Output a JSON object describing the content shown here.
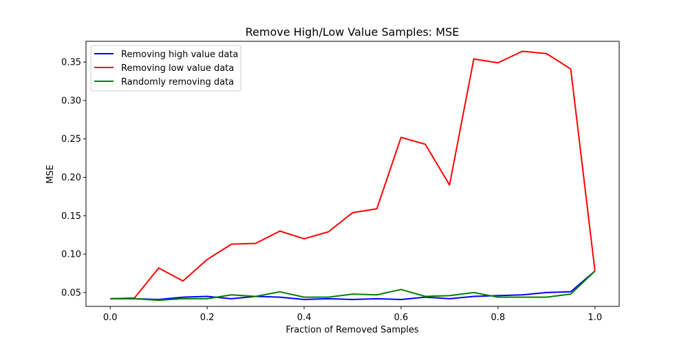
{
  "chart_data": {
    "type": "line",
    "title": "Remove High/Low Value Samples: MSE",
    "xlabel": "Fraction of Removed Samples",
    "ylabel": "MSE",
    "xlim": [
      -0.05,
      1.05
    ],
    "ylim": [
      0.032,
      0.377
    ],
    "xticks": [
      0.0,
      0.2,
      0.4,
      0.6,
      0.8,
      1.0
    ],
    "xtick_labels": [
      "0.0",
      "0.2",
      "0.4",
      "0.6",
      "0.8",
      "1.0"
    ],
    "yticks": [
      0.05,
      0.1,
      0.15,
      0.2,
      0.25,
      0.3,
      0.35
    ],
    "ytick_labels": [
      "0.05",
      "0.10",
      "0.15",
      "0.20",
      "0.25",
      "0.30",
      "0.35"
    ],
    "grid": false,
    "legend_position": "top-left",
    "x": [
      0.0,
      0.05,
      0.1,
      0.15,
      0.2,
      0.25,
      0.3,
      0.35,
      0.4,
      0.45,
      0.5,
      0.55,
      0.6,
      0.65,
      0.7,
      0.75,
      0.8,
      0.85,
      0.9,
      0.95,
      1.0
    ],
    "series": [
      {
        "name": "Removing high value data",
        "color": "#0000ff",
        "values": [
          0.042,
          0.042,
          0.041,
          0.044,
          0.045,
          0.042,
          0.045,
          0.044,
          0.041,
          0.042,
          0.041,
          0.042,
          0.041,
          0.044,
          0.042,
          0.045,
          0.046,
          0.047,
          0.05,
          0.051,
          0.078
        ]
      },
      {
        "name": "Removing low value data",
        "color": "#ff0000",
        "values": [
          0.042,
          0.043,
          0.082,
          0.065,
          0.093,
          0.113,
          0.114,
          0.13,
          0.12,
          0.129,
          0.154,
          0.159,
          0.252,
          0.243,
          0.19,
          0.354,
          0.349,
          0.364,
          0.361,
          0.341,
          0.078
        ]
      },
      {
        "name": "Randomly removing data",
        "color": "#008000",
        "values": [
          0.042,
          0.042,
          0.04,
          0.042,
          0.042,
          0.047,
          0.045,
          0.051,
          0.044,
          0.044,
          0.048,
          0.047,
          0.054,
          0.045,
          0.046,
          0.05,
          0.044,
          0.044,
          0.044,
          0.048,
          0.078
        ]
      }
    ]
  }
}
